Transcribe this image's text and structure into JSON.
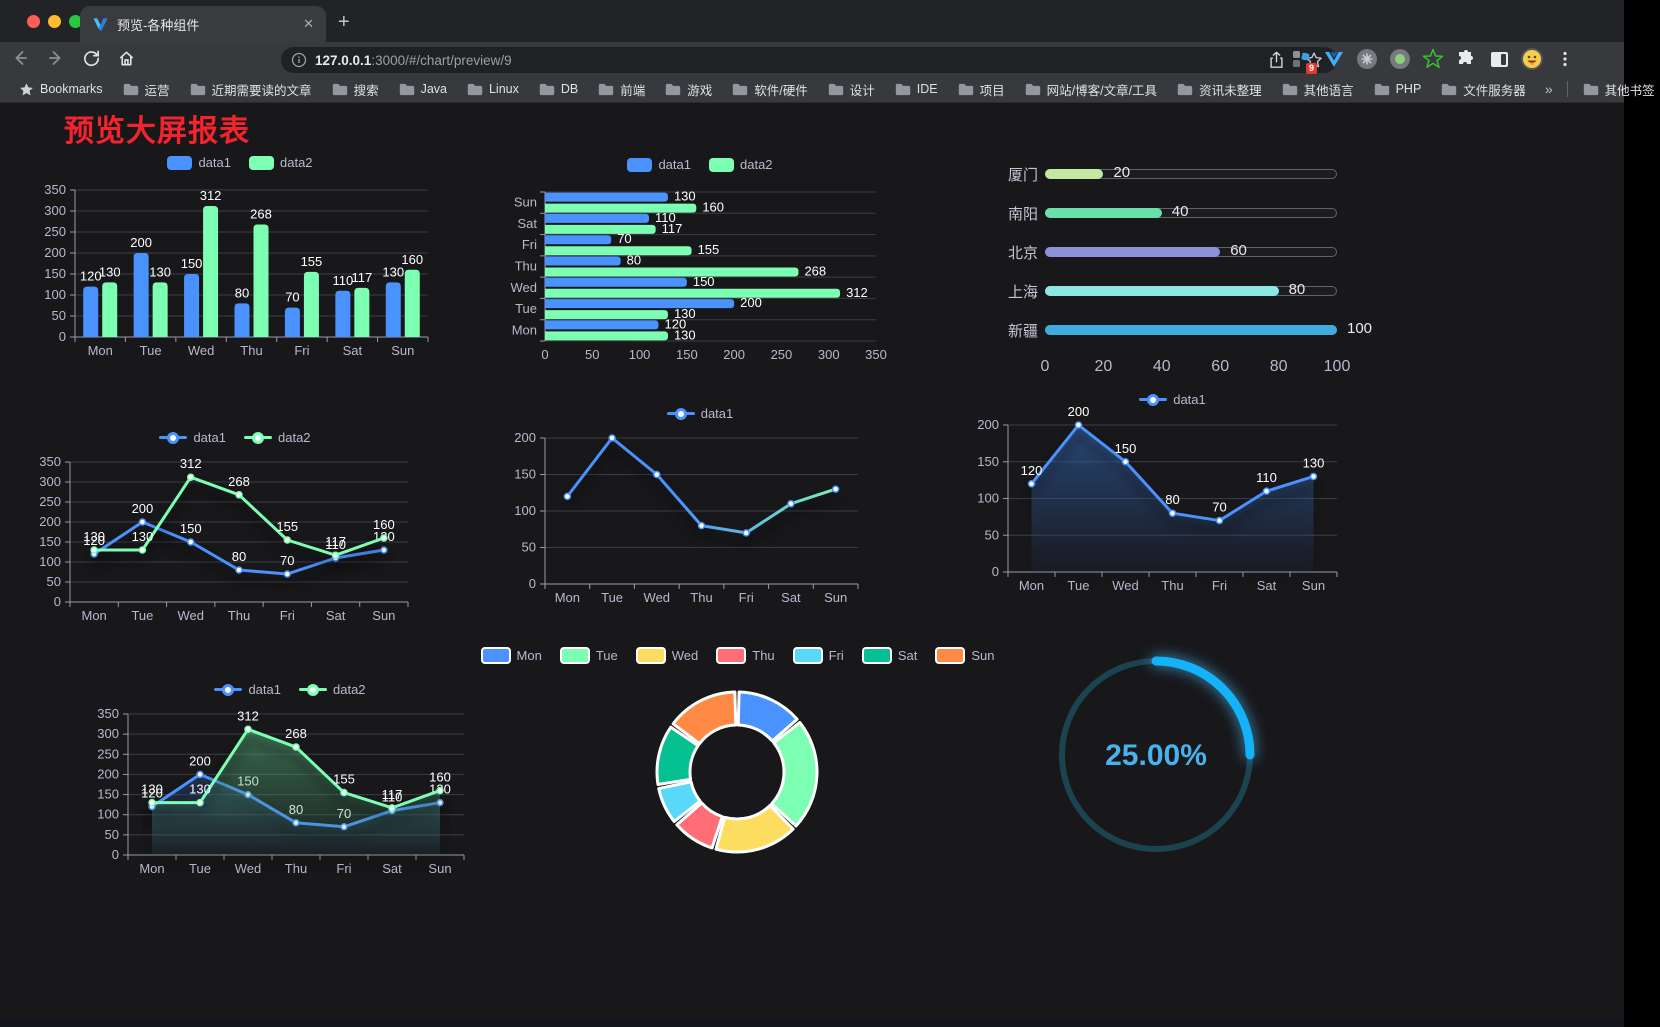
{
  "browser": {
    "tab": {
      "title": "预览-各种组件",
      "close_glyph": "✕",
      "new_tab_glyph": "+"
    },
    "url": {
      "host": "127.0.0.1",
      "rest": ":3000/#/chart/preview/9"
    },
    "bookmarks_bar": {
      "bookmarks_label": "Bookmarks",
      "folders": [
        "运营",
        "近期需要读的文章",
        "搜索",
        "Java",
        "Linux",
        "DB",
        "前端",
        "游戏",
        "软件/硬件",
        "设计",
        "IDE",
        "项目",
        "网站/博客/文章/工具",
        "资讯未整理",
        "其他语言",
        "PHP",
        "文件服务器"
      ],
      "overflow_glyph": "»",
      "other_bookmarks": "其他书签"
    },
    "extensions_badge": "9"
  },
  "page": {
    "title": "预览大屏报表"
  },
  "colors": {
    "data1": "#4992ff",
    "data2": "#7cffb2",
    "axis_text": "#b9b8ce",
    "grid": "#3c3c48",
    "title_red": "#f5232d"
  },
  "chart_data": [
    {
      "id": "grouped-bar",
      "type": "bar",
      "categories": [
        "Mon",
        "Tue",
        "Wed",
        "Thu",
        "Fri",
        "Sat",
        "Sun"
      ],
      "series": [
        {
          "name": "data1",
          "color": "#4992ff",
          "values": [
            120,
            200,
            150,
            80,
            70,
            110,
            130
          ]
        },
        {
          "name": "data2",
          "color": "#7cffb2",
          "values": [
            130,
            130,
            312,
            268,
            155,
            117,
            160
          ]
        }
      ],
      "ylim": [
        0,
        350
      ],
      "yticks": [
        0,
        50,
        100,
        150,
        200,
        250,
        300,
        350
      ],
      "value_labels": true,
      "legend_position": "top"
    },
    {
      "id": "horizontal-bar",
      "type": "bar-horizontal",
      "categories_top_to_bottom": [
        "Sun",
        "Sat",
        "Fri",
        "Thu",
        "Wed",
        "Tue",
        "Mon"
      ],
      "series": [
        {
          "name": "data1",
          "color": "#4992ff",
          "values_top_to_bottom": [
            130,
            110,
            70,
            80,
            150,
            200,
            120
          ]
        },
        {
          "name": "data2",
          "color": "#7cffb2",
          "values_top_to_bottom": [
            160,
            117,
            155,
            268,
            312,
            130,
            130
          ]
        }
      ],
      "xlim": [
        0,
        350
      ],
      "xticks": [
        0,
        50,
        100,
        150,
        200,
        250,
        300,
        350
      ],
      "value_labels": true,
      "legend_position": "top"
    },
    {
      "id": "city-progress",
      "type": "progress",
      "items": [
        {
          "label": "厦门",
          "value": 20,
          "color": "#c4e7a2"
        },
        {
          "label": "南阳",
          "value": 40,
          "color": "#69dfa9"
        },
        {
          "label": "北京",
          "value": 60,
          "color": "#8b92d8"
        },
        {
          "label": "上海",
          "value": 80,
          "color": "#8be8e3"
        },
        {
          "label": "新疆",
          "value": 100,
          "color": "#3fabdf"
        }
      ],
      "max": 100,
      "xticks": [
        0,
        20,
        40,
        60,
        80,
        100
      ]
    },
    {
      "id": "multi-line",
      "type": "line",
      "categories": [
        "Mon",
        "Tue",
        "Wed",
        "Thu",
        "Fri",
        "Sat",
        "Sun"
      ],
      "series": [
        {
          "name": "data1",
          "color": "#4992ff",
          "values": [
            120,
            200,
            150,
            80,
            70,
            110,
            130
          ]
        },
        {
          "name": "data2",
          "color": "#7cffb2",
          "values": [
            130,
            130,
            312,
            268,
            155,
            117,
            160
          ]
        }
      ],
      "ylim": [
        0,
        350
      ],
      "yticks": [
        0,
        50,
        100,
        150,
        200,
        250,
        300,
        350
      ],
      "value_labels": true
    },
    {
      "id": "gradient-line",
      "type": "line",
      "categories": [
        "Mon",
        "Tue",
        "Wed",
        "Thu",
        "Fri",
        "Sat",
        "Sun"
      ],
      "series": [
        {
          "name": "data1",
          "color": "#4992ff",
          "values": [
            120,
            200,
            150,
            80,
            70,
            110,
            130
          ]
        }
      ],
      "ylim": [
        0,
        200
      ],
      "yticks": [
        0,
        50,
        100,
        150,
        200
      ],
      "value_labels": false,
      "stroke_gradient": [
        "#4992ff",
        "#7cffb2"
      ]
    },
    {
      "id": "area-line",
      "type": "line",
      "area": true,
      "categories": [
        "Mon",
        "Tue",
        "Wed",
        "Thu",
        "Fri",
        "Sat",
        "Sun"
      ],
      "series": [
        {
          "name": "data1",
          "color": "#4992ff",
          "values": [
            120,
            200,
            150,
            80,
            70,
            110,
            130
          ]
        }
      ],
      "ylim": [
        0,
        200
      ],
      "yticks": [
        0,
        50,
        100,
        150,
        200
      ],
      "value_labels": true
    },
    {
      "id": "multi-area-line",
      "type": "line",
      "area": true,
      "categories": [
        "Mon",
        "Tue",
        "Wed",
        "Thu",
        "Fri",
        "Sat",
        "Sun"
      ],
      "series": [
        {
          "name": "data1",
          "color": "#4992ff",
          "values": [
            120,
            200,
            150,
            80,
            70,
            110,
            130
          ]
        },
        {
          "name": "data2",
          "color": "#7cffb2",
          "values": [
            130,
            130,
            312,
            268,
            155,
            117,
            160
          ]
        }
      ],
      "ylim": [
        0,
        350
      ],
      "yticks": [
        0,
        50,
        100,
        150,
        200,
        250,
        300,
        350
      ],
      "value_labels": true
    },
    {
      "id": "donut",
      "type": "pie",
      "categories": [
        "Mon",
        "Tue",
        "Wed",
        "Thu",
        "Fri",
        "Sat",
        "Sun"
      ],
      "values": [
        120,
        200,
        150,
        80,
        70,
        110,
        130
      ],
      "colors": [
        "#4992ff",
        "#7cffb2",
        "#fddd60",
        "#ff6e76",
        "#58d9f9",
        "#05c091",
        "#ff8a45"
      ],
      "border_color": "#ffffff"
    },
    {
      "id": "gauge",
      "type": "gauge",
      "value": 25,
      "display": "25.00%",
      "arc_color": "#14b2f8",
      "track_color": "#1c4350",
      "text_color": "#49b2ec"
    }
  ]
}
